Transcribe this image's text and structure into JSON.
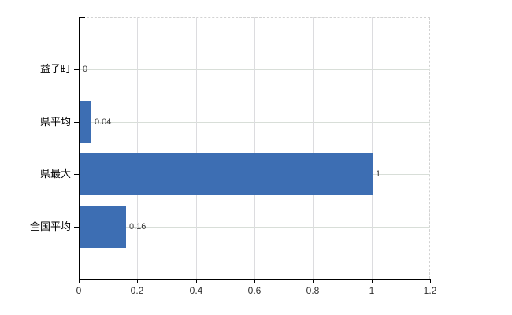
{
  "chart_data": {
    "type": "bar",
    "orientation": "horizontal",
    "title": "",
    "xlabel": "",
    "ylabel": "",
    "categories": [
      "益子町",
      "県平均",
      "県最大",
      "全国平均"
    ],
    "values": [
      0,
      0.04,
      1,
      0.16
    ],
    "value_labels": [
      "0",
      "0.04",
      "1",
      "0.16"
    ],
    "x_ticks": [
      0,
      0.2,
      0.4,
      0.6,
      0.8,
      1,
      1.2
    ],
    "x_tick_labels": [
      "0",
      "0.2",
      "0.4",
      "0.6",
      "0.8",
      "1",
      "1.2"
    ],
    "xlim": [
      0,
      1.2
    ],
    "grid": true,
    "legend": false,
    "colors": {
      "bar": "#3d6eb3",
      "axis": "#000000",
      "gridline_h": "#d8ded8",
      "gridline_v": "#dcdcdf",
      "dashed_border": "#d2d2d2",
      "category_label": "#000000",
      "value_label": "#383838",
      "tick_label": "#303030",
      "background": "#ffffff"
    }
  }
}
